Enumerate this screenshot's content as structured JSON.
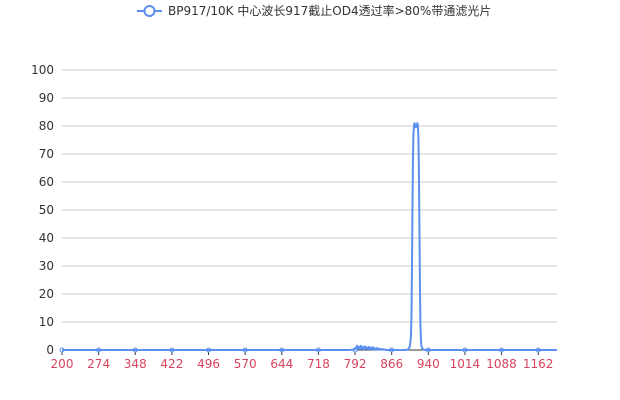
{
  "chart_data": {
    "type": "line",
    "title": "",
    "xlabel": "",
    "ylabel": "",
    "legend_position": "top-center",
    "grid": true,
    "xlim": [
      200,
      1200
    ],
    "ylim": [
      0,
      100
    ],
    "xticks": [
      200,
      274,
      348,
      422,
      496,
      570,
      644,
      718,
      792,
      866,
      940,
      1014,
      1088,
      1162
    ],
    "yticks": [
      0,
      10,
      20,
      30,
      40,
      50,
      60,
      70,
      80,
      90,
      100
    ],
    "colors": {
      "series": "#5b8ff0",
      "xtick_labels": "#d9435e",
      "grid": "#cccccc",
      "axis": "#333333"
    },
    "series": [
      {
        "name": "BP917/10K 中心波长917截止OD4透过率>80%带通滤光片",
        "x": [
          200,
          274,
          348,
          422,
          496,
          570,
          644,
          718,
          780,
          792,
          796,
          798,
          800,
          802,
          804,
          806,
          808,
          810,
          812,
          814,
          816,
          818,
          820,
          822,
          824,
          826,
          828,
          830,
          832,
          834,
          836,
          838,
          840,
          842,
          844,
          846,
          848,
          850,
          852,
          854,
          858,
          862,
          866,
          880,
          895,
          900,
          903,
          905,
          906,
          907,
          908,
          909,
          910,
          911,
          912,
          913,
          914,
          915,
          916,
          917,
          918,
          919,
          920,
          921,
          922,
          923,
          924,
          925,
          926,
          928,
          930,
          935,
          940,
          1014,
          1088,
          1162,
          1200
        ],
        "y": [
          0,
          0,
          0,
          0,
          0,
          0,
          0,
          0,
          0,
          0.2,
          1.5,
          0.4,
          1.2,
          0.3,
          1.5,
          0.5,
          1.1,
          0.2,
          1.3,
          0.4,
          0.9,
          0.3,
          1.1,
          0.2,
          0.8,
          0.3,
          1.0,
          0.2,
          0.6,
          0.1,
          0.7,
          0.2,
          0.5,
          0.1,
          0.4,
          0.1,
          0.3,
          0.1,
          0.2,
          0,
          0,
          0,
          0,
          0,
          0,
          0.3,
          1.5,
          5,
          12,
          28,
          50,
          68,
          77,
          80,
          81,
          80.5,
          79.8,
          79.5,
          80,
          80.5,
          81,
          80,
          76,
          65,
          45,
          25,
          10,
          4,
          1.5,
          0.5,
          0.2,
          0,
          0,
          0,
          0,
          0,
          0
        ]
      }
    ]
  }
}
